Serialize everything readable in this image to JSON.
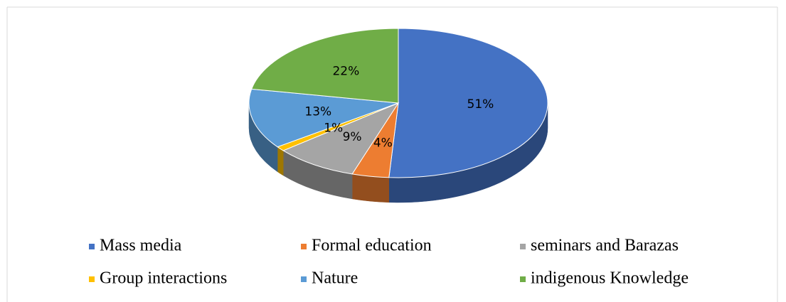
{
  "chart_data": {
    "type": "pie",
    "categories": [
      "Mass media",
      "Formal education",
      "seminars and Barazas",
      "Group interactions",
      "Nature",
      "indigenous Knowledge"
    ],
    "values": [
      51,
      4,
      9,
      1,
      13,
      22
    ],
    "value_labels": [
      "51%",
      "4%",
      "9%",
      "1%",
      "13%",
      "22%"
    ],
    "colors": [
      "#4472c4",
      "#ed7d31",
      "#a5a5a5",
      "#ffc000",
      "#5b9bd5",
      "#70ad47"
    ],
    "legend": "bottom"
  }
}
